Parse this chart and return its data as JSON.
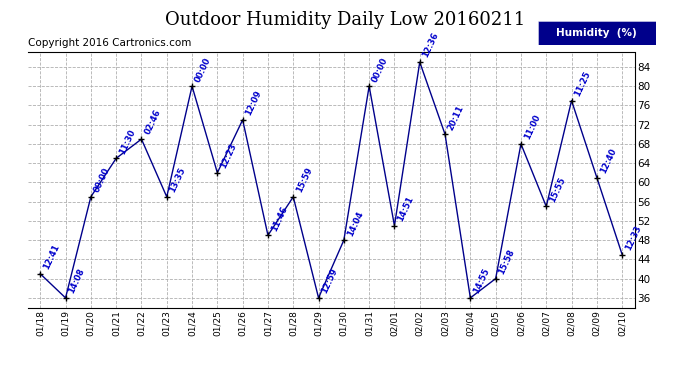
{
  "title": "Outdoor Humidity Daily Low 20160211",
  "copyright": "Copyright 2016 Cartronics.com",
  "legend_label": "Humidity  (%)",
  "x_labels": [
    "01/18",
    "01/19",
    "01/20",
    "01/21",
    "01/22",
    "01/23",
    "01/24",
    "01/25",
    "01/26",
    "01/27",
    "01/28",
    "01/29",
    "01/30",
    "01/31",
    "02/01",
    "02/02",
    "02/03",
    "02/04",
    "02/05",
    "02/06",
    "02/07",
    "02/08",
    "02/09",
    "02/10"
  ],
  "y_values": [
    41,
    36,
    57,
    65,
    69,
    57,
    80,
    62,
    73,
    49,
    57,
    36,
    48,
    80,
    51,
    85,
    70,
    36,
    40,
    68,
    55,
    77,
    61,
    45
  ],
  "point_labels": [
    "12:41",
    "14:08",
    "00:00",
    "11:30",
    "02:46",
    "13:35",
    "00:00",
    "12:23",
    "12:09",
    "11:46",
    "15:59",
    "12:59",
    "14:04",
    "00:00",
    "14:51",
    "12:36",
    "20:11",
    "14:55",
    "15:58",
    "11:00",
    "15:55",
    "11:25",
    "12:40",
    "12:33"
  ],
  "ylim": [
    34,
    87
  ],
  "yticks": [
    36,
    40,
    44,
    48,
    52,
    56,
    60,
    64,
    68,
    72,
    76,
    80,
    84
  ],
  "line_color": "#00008B",
  "marker_color": "#000000",
  "label_color": "#0000CC",
  "bg_color": "#ffffff",
  "grid_color": "#B0B0B0",
  "title_fontsize": 13,
  "label_fontsize": 6.5,
  "copyright_fontsize": 7.5,
  "legend_bg": "#00008B",
  "legend_fg": "#ffffff"
}
